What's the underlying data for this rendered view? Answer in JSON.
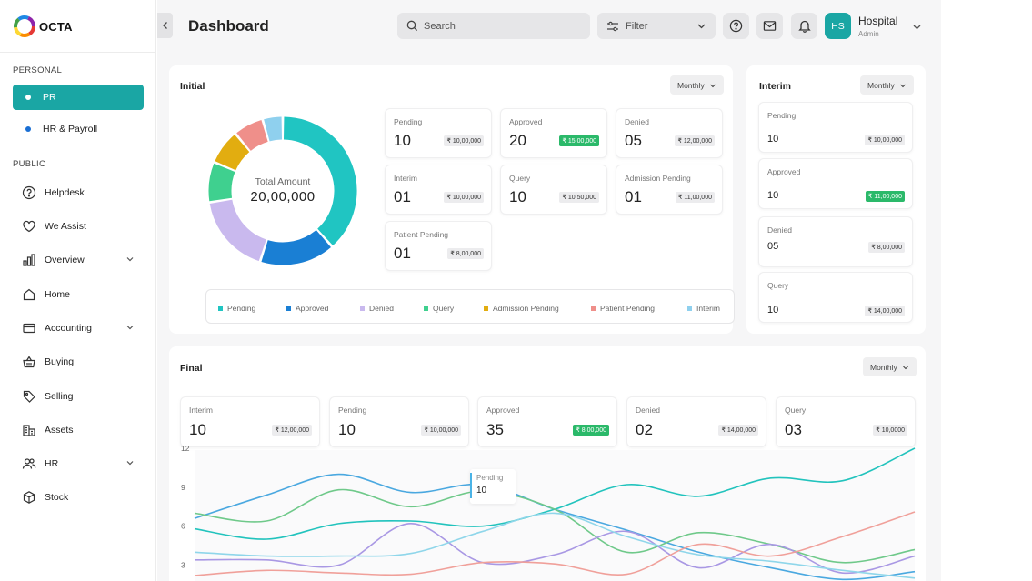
{
  "brand": {
    "name": "OCTA"
  },
  "sidebar": {
    "sections": [
      {
        "label": "PERSONAL"
      },
      {
        "label": "PUBLIC"
      }
    ],
    "personal_items": [
      {
        "label": "PR",
        "active": true
      },
      {
        "label": "HR & Payroll",
        "active": false
      }
    ],
    "public_items": [
      {
        "label": "Helpdesk",
        "icon": "help-circle-icon",
        "has_chevron": false
      },
      {
        "label": "We Assist",
        "icon": "heart-icon",
        "has_chevron": false
      },
      {
        "label": "Overview",
        "icon": "bar-chart-icon",
        "has_chevron": true
      },
      {
        "label": "Home",
        "icon": "home-icon",
        "has_chevron": false
      },
      {
        "label": "Accounting",
        "icon": "wallet-icon",
        "has_chevron": true
      },
      {
        "label": "Buying",
        "icon": "basket-icon",
        "has_chevron": false
      },
      {
        "label": "Selling",
        "icon": "tag-icon",
        "has_chevron": false
      },
      {
        "label": "Assets",
        "icon": "assets-icon",
        "has_chevron": false
      },
      {
        "label": "HR",
        "icon": "users-icon",
        "has_chevron": true
      },
      {
        "label": "Stock",
        "icon": "box-icon",
        "has_chevron": false
      }
    ]
  },
  "header": {
    "title": "Dashboard",
    "search_placeholder": "Search",
    "filter_label": "Filter",
    "user": {
      "initials": "HS",
      "name": "Hospital",
      "role": "Admin"
    }
  },
  "initial": {
    "title": "Initial",
    "period": "Monthly",
    "donut": {
      "center_label": "Total Amount",
      "center_value": "20,00,000"
    },
    "stats": [
      {
        "label": "Pending",
        "value": "10",
        "amount": "₹ 10,00,000",
        "highlight": false
      },
      {
        "label": "Approved",
        "value": "20",
        "amount": "₹ 15,00,000",
        "highlight": true
      },
      {
        "label": "Denied",
        "value": "05",
        "amount": "₹ 12,00,000",
        "highlight": false
      },
      {
        "label": "Interim",
        "value": "01",
        "amount": "₹ 10,00,000",
        "highlight": false
      },
      {
        "label": "Query",
        "value": "10",
        "amount": "₹ 10,50,000",
        "highlight": false
      },
      {
        "label": "Admission Pending",
        "value": "01",
        "amount": "₹ 11,00,000",
        "highlight": false
      },
      {
        "label": "Patient Pending",
        "value": "01",
        "amount": "₹ 8,00,000",
        "highlight": false
      }
    ],
    "legend": [
      {
        "label": "Pending",
        "color": "#20c5c2"
      },
      {
        "label": "Approved",
        "color": "#1a7fd4"
      },
      {
        "label": "Denied",
        "color": "#c9b9ee"
      },
      {
        "label": "Query",
        "color": "#3fd08f"
      },
      {
        "label": "Admission Pending",
        "color": "#e2ad10"
      },
      {
        "label": "Patient Pending",
        "color": "#ef8f8a"
      },
      {
        "label": "Interim",
        "color": "#8fd0ee"
      }
    ]
  },
  "interim": {
    "title": "Interim",
    "period": "Monthly",
    "stats": [
      {
        "label": "Pending",
        "value": "10",
        "amount": "₹ 10,00,000",
        "highlight": false
      },
      {
        "label": "Approved",
        "value": "10",
        "amount": "₹ 11,00,000",
        "highlight": true
      },
      {
        "label": "Denied",
        "value": "05",
        "amount": "₹ 8,00,000",
        "highlight": false
      },
      {
        "label": "Query",
        "value": "10",
        "amount": "₹ 14,00,000",
        "highlight": false
      }
    ]
  },
  "final": {
    "title": "Final",
    "period": "Monthly",
    "stats": [
      {
        "label": "Interim",
        "value": "10",
        "amount": "₹ 12,00,000",
        "highlight": false
      },
      {
        "label": "Pending",
        "value": "10",
        "amount": "₹ 10,00,000",
        "highlight": false
      },
      {
        "label": "Approved",
        "value": "35",
        "amount": "₹ 8,00,000",
        "highlight": true
      },
      {
        "label": "Denied",
        "value": "02",
        "amount": "₹ 14,00,000",
        "highlight": false
      },
      {
        "label": "Query",
        "value": "03",
        "amount": "₹ 10,0000",
        "highlight": false
      }
    ],
    "tooltip": {
      "label": "Pending",
      "value": "10"
    }
  },
  "chart_data": [
    {
      "type": "pie",
      "categories": [
        "Pending",
        "Approved",
        "Denied",
        "Query",
        "Admission Pending",
        "Patient Pending",
        "Interim"
      ],
      "values": [
        35,
        15,
        16,
        8,
        7,
        6,
        4
      ],
      "colors": [
        "#20c5c2",
        "#1a7fd4",
        "#c9b9ee",
        "#3fd08f",
        "#e2ad10",
        "#ef8f8a",
        "#8fd0ee"
      ],
      "donut": true
    },
    {
      "type": "line",
      "yticks": [
        12,
        9,
        6,
        3
      ],
      "ylim": [
        1.5,
        12
      ],
      "x": [
        0,
        1,
        2,
        3,
        4,
        5,
        6,
        7,
        8,
        9,
        10
      ],
      "grid": false,
      "series": [
        {
          "color": "#22c3bd",
          "values": [
            5.8,
            5.0,
            6.2,
            6.4,
            6.0,
            7.3,
            9.2,
            8.3,
            9.7,
            9.5,
            12.0
          ]
        },
        {
          "color": "#4aa8e0",
          "values": [
            6.6,
            8.4,
            10.0,
            8.6,
            9.2,
            7.3,
            5.7,
            4.0,
            2.8,
            1.9,
            2.5
          ]
        },
        {
          "color": "#6fc98a",
          "values": [
            7.0,
            6.4,
            8.8,
            7.5,
            8.7,
            7.3,
            4.0,
            5.5,
            4.6,
            3.2,
            4.2
          ]
        },
        {
          "color": "#a998e4",
          "values": [
            3.4,
            3.4,
            3.0,
            6.2,
            3.2,
            3.8,
            5.6,
            2.8,
            4.6,
            2.4,
            3.7
          ]
        },
        {
          "color": "#8fd6ea",
          "values": [
            4.0,
            3.7,
            3.7,
            3.9,
            5.6,
            7.0,
            5.2,
            3.8,
            3.3,
            2.6,
            2.0
          ]
        },
        {
          "color": "#f0a09a",
          "values": [
            2.2,
            2.6,
            2.4,
            2.3,
            3.2,
            3.1,
            2.3,
            4.6,
            3.7,
            5.2,
            7.1
          ]
        }
      ]
    }
  ]
}
